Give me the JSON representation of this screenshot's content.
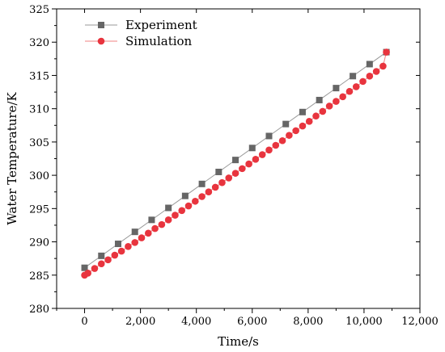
{
  "chart_data": {
    "type": "line",
    "title": "",
    "xlabel": "Time/s",
    "ylabel": "Water Temperature/K",
    "xlim": [
      -1000,
      12000
    ],
    "ylim": [
      280,
      325
    ],
    "xticks": [
      0,
      2000,
      4000,
      6000,
      8000,
      10000,
      12000
    ],
    "xtick_labels": [
      "0",
      "2,000",
      "4,000",
      "6,000",
      "8,000",
      "10,000",
      "12,000"
    ],
    "yticks": [
      280,
      285,
      290,
      295,
      300,
      305,
      310,
      315,
      320,
      325
    ],
    "ytick_labels": [
      "280",
      "285",
      "290",
      "295",
      "300",
      "305",
      "310",
      "315",
      "320",
      "325"
    ],
    "grid": false,
    "legend_position": "top-left",
    "series": [
      {
        "name": "Experiment",
        "marker": "square",
        "color": "#666666",
        "line_color": "#999999",
        "x": [
          0,
          600,
          1200,
          1800,
          2400,
          3000,
          3600,
          4200,
          4800,
          5400,
          6000,
          6600,
          7200,
          7800,
          8400,
          9000,
          9600,
          10200,
          10800
        ],
        "y": [
          286.1,
          287.9,
          289.7,
          291.5,
          293.3,
          295.1,
          296.9,
          298.7,
          300.5,
          302.3,
          304.1,
          305.9,
          307.7,
          309.5,
          311.3,
          313.1,
          314.9,
          316.7,
          318.5
        ]
      },
      {
        "name": "Simulation",
        "marker": "circle",
        "color": "#e8343e",
        "line_color": "#f08080",
        "x": [
          0,
          120,
          360,
          600,
          840,
          1080,
          1320,
          1560,
          1800,
          2040,
          2280,
          2520,
          2760,
          3000,
          3240,
          3480,
          3720,
          3960,
          4200,
          4440,
          4680,
          4920,
          5160,
          5400,
          5640,
          5880,
          6120,
          6360,
          6600,
          6840,
          7080,
          7320,
          7560,
          7800,
          8040,
          8280,
          8520,
          8760,
          9000,
          9240,
          9480,
          9720,
          9960,
          10200,
          10440,
          10680,
          10800
        ],
        "y": [
          285.0,
          285.3,
          286.0,
          286.7,
          287.3,
          288.0,
          288.6,
          289.3,
          289.9,
          290.6,
          291.3,
          292.0,
          292.6,
          293.3,
          294.0,
          294.7,
          295.4,
          296.1,
          296.8,
          297.5,
          298.2,
          298.9,
          299.6,
          300.3,
          301.0,
          301.7,
          302.4,
          303.1,
          303.8,
          304.5,
          305.2,
          306.0,
          306.7,
          307.4,
          308.1,
          308.9,
          309.6,
          310.4,
          311.1,
          311.8,
          312.6,
          313.3,
          314.1,
          314.9,
          315.6,
          316.4,
          318.5
        ]
      }
    ]
  }
}
